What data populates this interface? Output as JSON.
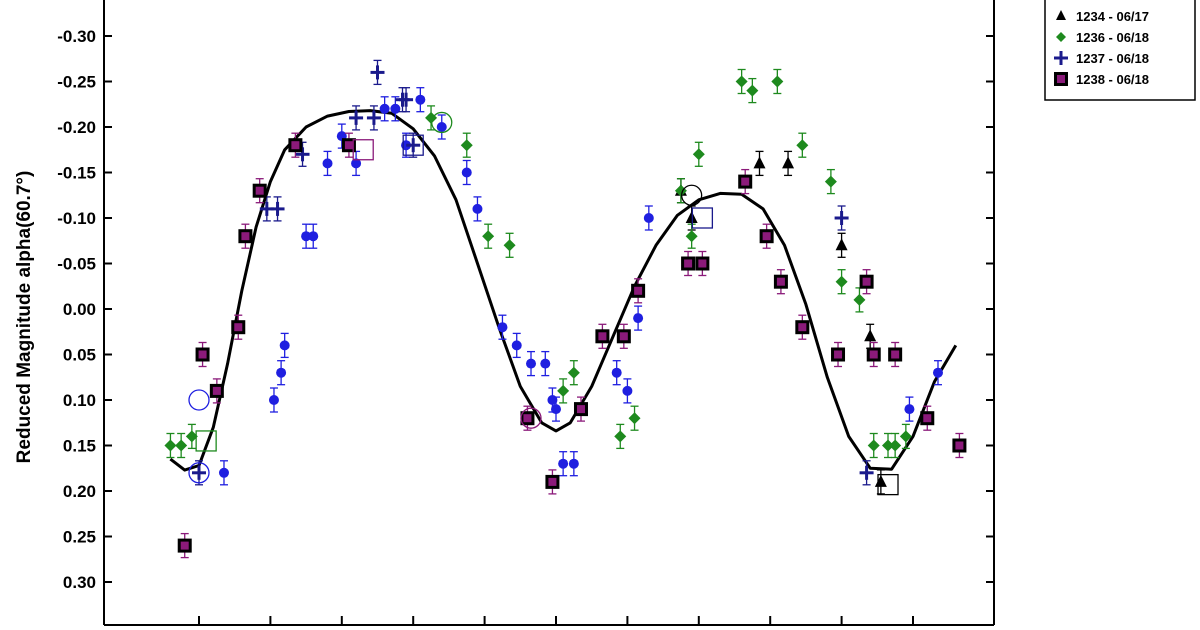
{
  "chart_data": {
    "type": "scatter",
    "title": "",
    "xlabel": "",
    "ylabel": "Reduced Magnitude alpha(60.7°)",
    "y_inverted": true,
    "ylim": [
      0.35,
      -0.34
    ],
    "xlim": [
      0.0,
      1.25
    ],
    "yticks": [
      -0.3,
      -0.25,
      -0.2,
      -0.15,
      -0.1,
      -0.05,
      0.0,
      0.05,
      0.1,
      0.15,
      0.2,
      0.25,
      0.3
    ],
    "ytick_labels": [
      "-0.30",
      "-0.25",
      "-0.20",
      "-0.15",
      "-0.10",
      "-0.05",
      "0.00",
      "0.05",
      "0.10",
      "0.15",
      "0.20",
      "0.25",
      "0.30"
    ],
    "xticks": [
      0.1,
      0.2,
      0.3,
      0.4,
      0.5,
      0.6,
      0.7,
      0.8,
      0.9,
      1.0,
      1.1
    ],
    "grid": false,
    "legend_position": "top-right",
    "legend": [
      {
        "label": "1234 - 06/17",
        "marker": "triangle",
        "color": "#000000"
      },
      {
        "label": "1236 - 06/18",
        "marker": "diamond",
        "color": "#1e8a1e"
      },
      {
        "label": "1237 - 06/18",
        "marker": "plus",
        "color": "#1a1a8c"
      },
      {
        "label": "1238 - 06/18",
        "marker": "square",
        "color": "#8b1a7a"
      }
    ],
    "series": [
      {
        "marker": "circle",
        "color": "#1f1fe0",
        "x": [
          0.135,
          0.205,
          0.215,
          0.22,
          0.25,
          0.26,
          0.28,
          0.3,
          0.32,
          0.36,
          0.375,
          0.39,
          0.41,
          0.44,
          0.475,
          0.49,
          0.525,
          0.545,
          0.565,
          0.585,
          0.595,
          0.6,
          0.61,
          0.625,
          0.685,
          0.7,
          0.715,
          0.73,
          1.095,
          1.135
        ],
        "y": [
          0.18,
          0.1,
          0.07,
          0.04,
          -0.08,
          -0.08,
          -0.16,
          -0.19,
          -0.16,
          -0.22,
          -0.22,
          -0.18,
          -0.23,
          -0.2,
          -0.15,
          -0.11,
          0.02,
          0.04,
          0.06,
          0.06,
          0.1,
          0.11,
          0.17,
          0.17,
          0.07,
          0.09,
          0.01,
          -0.1,
          0.11,
          0.07
        ]
      },
      {
        "marker": "triangle",
        "color": "#000000",
        "x": [
          0.775,
          0.79,
          0.885,
          0.925,
          1.0,
          1.04,
          1.055
        ],
        "y": [
          -0.13,
          -0.1,
          -0.16,
          -0.16,
          -0.07,
          0.03,
          0.19
        ]
      },
      {
        "marker": "diamond",
        "color": "#1e8a1e",
        "x": [
          0.06,
          0.075,
          0.09,
          0.425,
          0.475,
          0.505,
          0.535,
          0.61,
          0.625,
          0.69,
          0.71,
          0.775,
          0.79,
          0.8,
          0.86,
          0.875,
          0.91,
          0.945,
          0.985,
          1.0,
          1.025,
          1.045,
          1.065,
          1.075,
          1.09
        ],
        "y": [
          0.15,
          0.15,
          0.14,
          -0.21,
          -0.18,
          -0.08,
          -0.07,
          0.09,
          0.07,
          0.14,
          0.12,
          -0.13,
          -0.08,
          -0.17,
          -0.25,
          -0.24,
          -0.25,
          -0.18,
          -0.14,
          -0.03,
          -0.01,
          0.15,
          0.15,
          0.15,
          0.14
        ]
      },
      {
        "marker": "plus",
        "color": "#1a1a8c",
        "x": [
          0.1,
          0.195,
          0.21,
          0.245,
          0.32,
          0.345,
          0.35,
          0.385,
          0.39,
          0.4,
          1.0,
          1.035
        ],
        "y": [
          0.18,
          -0.11,
          -0.11,
          -0.17,
          -0.21,
          -0.21,
          -0.26,
          -0.23,
          -0.23,
          -0.18,
          -0.1,
          0.18
        ]
      },
      {
        "marker": "square",
        "color": "#8b1a7a",
        "x": [
          0.08,
          0.105,
          0.125,
          0.155,
          0.165,
          0.185,
          0.235,
          0.31,
          0.56,
          0.595,
          0.635,
          0.665,
          0.695,
          0.715,
          0.785,
          0.805,
          0.865,
          0.895,
          0.915,
          0.945,
          0.995,
          1.035,
          1.045,
          1.075,
          1.12,
          1.165
        ],
        "y": [
          0.26,
          0.05,
          0.09,
          0.02,
          -0.08,
          -0.13,
          -0.18,
          -0.18,
          0.12,
          0.19,
          0.11,
          0.03,
          0.03,
          -0.02,
          -0.05,
          -0.05,
          -0.14,
          -0.08,
          -0.03,
          0.02,
          0.05,
          -0.03,
          0.05,
          0.05,
          0.12,
          0.15
        ]
      }
    ],
    "fit_curve": {
      "color": "#000000",
      "style": "solid"
    }
  }
}
